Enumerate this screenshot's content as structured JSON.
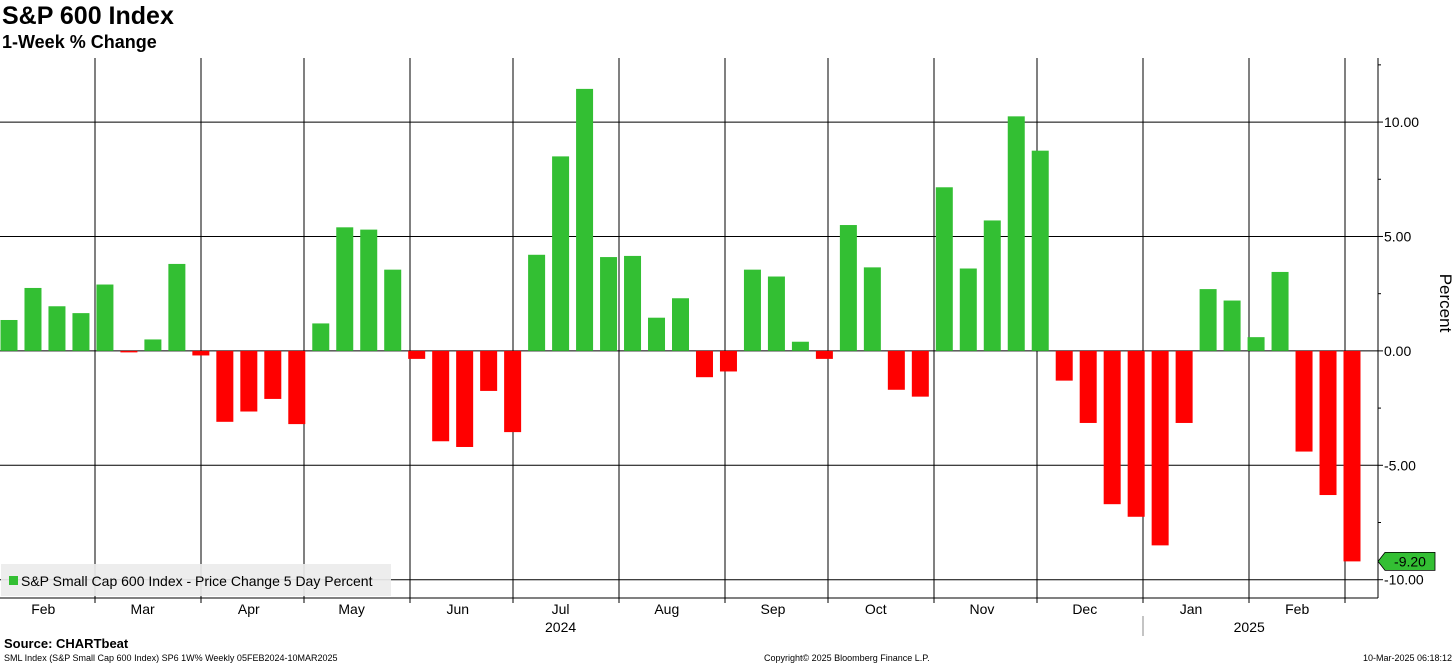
{
  "header": {
    "title": "S&P 600 Index",
    "subtitle": "1-Week % Change"
  },
  "footer": {
    "source": "Source: CHARTbeat",
    "security": "SML Index (S&P Small Cap 600 Index) SP6 1W% Weekly 05FEB2024-10MAR2025",
    "copyright": "Copyright© 2025 Bloomberg Finance L.P.",
    "timestamp": "10-Mar-2025 06:18:12"
  },
  "colors": {
    "positive": "#33bf33",
    "negative": "#ff0000",
    "grid": "#000000",
    "last_value_badge": "#33bf33"
  },
  "chart_data": {
    "type": "bar",
    "title": "S&P 600 Index",
    "subtitle": "1-Week % Change",
    "ylabel": "Percent",
    "ylim": [
      -10.8,
      12.8
    ],
    "yticks": [
      10,
      5,
      0,
      -5,
      -10
    ],
    "ytick_labels": [
      "10.00",
      "5.00",
      "0.00",
      "-5.00",
      "-10.00"
    ],
    "grid": true,
    "legend_position": "bottom-left",
    "x_start": "2024-02-05",
    "x_end": "2025-03-10",
    "month_labels": [
      "Feb",
      "Mar",
      "Apr",
      "May",
      "Jun",
      "Jul",
      "Aug",
      "Sep",
      "Oct",
      "Nov",
      "Dec",
      "Jan",
      "Feb"
    ],
    "month_dates": [
      "2024-02-15",
      "2024-03-15",
      "2024-04-15",
      "2024-05-15",
      "2024-06-15",
      "2024-07-15",
      "2024-08-15",
      "2024-09-15",
      "2024-10-15",
      "2024-11-15",
      "2024-12-15",
      "2025-01-15",
      "2025-02-15"
    ],
    "month_boundaries": [
      "2024-03-01",
      "2024-04-01",
      "2024-05-01",
      "2024-06-01",
      "2024-07-01",
      "2024-08-01",
      "2024-09-01",
      "2024-10-01",
      "2024-11-01",
      "2024-12-01",
      "2025-01-01",
      "2025-02-01",
      "2025-03-01"
    ],
    "year_labels": [
      {
        "label": "2024",
        "date": "2024-07-15"
      },
      {
        "label": "2025",
        "date": "2025-02-01"
      }
    ],
    "year_divider": "2025-01-01",
    "series": [
      {
        "name": "S&P Small Cap 600 Index - Price Change 5 Day Percent",
        "dates": [
          "2024-02-05",
          "2024-02-12",
          "2024-02-19",
          "2024-02-26",
          "2024-03-04",
          "2024-03-11",
          "2024-03-18",
          "2024-03-25",
          "2024-04-01",
          "2024-04-08",
          "2024-04-15",
          "2024-04-22",
          "2024-04-29",
          "2024-05-06",
          "2024-05-13",
          "2024-05-20",
          "2024-05-27",
          "2024-06-03",
          "2024-06-10",
          "2024-06-17",
          "2024-06-24",
          "2024-07-01",
          "2024-07-08",
          "2024-07-15",
          "2024-07-22",
          "2024-07-29",
          "2024-08-05",
          "2024-08-12",
          "2024-08-19",
          "2024-08-26",
          "2024-09-02",
          "2024-09-09",
          "2024-09-16",
          "2024-09-23",
          "2024-09-30",
          "2024-10-07",
          "2024-10-14",
          "2024-10-21",
          "2024-10-28",
          "2024-11-04",
          "2024-11-11",
          "2024-11-18",
          "2024-11-25",
          "2024-12-02",
          "2024-12-09",
          "2024-12-16",
          "2024-12-23",
          "2024-12-30",
          "2025-01-06",
          "2025-01-13",
          "2025-01-20",
          "2025-01-27",
          "2025-02-03",
          "2025-02-10",
          "2025-02-17",
          "2025-02-24",
          "2025-03-03"
        ],
        "values": [
          1.35,
          2.75,
          1.95,
          1.65,
          2.9,
          -0.05,
          0.5,
          3.8,
          -0.2,
          -3.1,
          -2.65,
          -2.1,
          -3.2,
          1.2,
          5.4,
          5.3,
          3.55,
          -0.35,
          -3.95,
          -4.2,
          -1.75,
          -3.55,
          4.2,
          8.5,
          11.45,
          4.1,
          4.15,
          1.45,
          2.3,
          -1.15,
          -0.9,
          3.55,
          3.25,
          0.4,
          -0.35,
          5.5,
          3.65,
          -1.7,
          -2.0,
          7.15,
          3.6,
          5.7,
          10.25,
          8.75,
          -1.3,
          -3.15,
          -6.7,
          -7.25,
          -8.5,
          -3.15,
          2.7,
          2.2,
          0.6,
          3.45,
          -4.4,
          -6.3,
          -9.2
        ]
      }
    ],
    "last_value_label": "-9.20"
  }
}
